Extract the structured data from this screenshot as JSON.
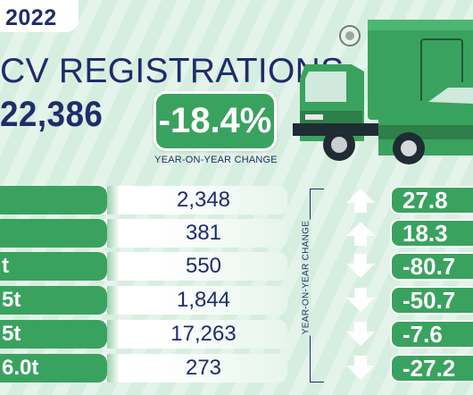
{
  "year": "2022",
  "title": "CV REGISTRATIONS",
  "total": "22,386",
  "change": {
    "value": "-18.4%",
    "label": "YEAR-ON-YEAR CHANGE"
  },
  "side_label": "YEAR-ON-YEAR CHANGE",
  "rows": [
    {
      "label": "",
      "value": "2,348",
      "change": "27.8",
      "direction": "up"
    },
    {
      "label": "",
      "value": "381",
      "change": "18.3",
      "direction": "up"
    },
    {
      "label": "t",
      "value": "550",
      "change": "-80.7",
      "direction": "down"
    },
    {
      "label": "5t",
      "value": "1,844",
      "change": "-50.7",
      "direction": "down"
    },
    {
      "label": "5t",
      "value": "17,263",
      "change": "-7.6",
      "direction": "down"
    },
    {
      "label": "6.0t",
      "value": "273",
      "change": "-27.2",
      "direction": "down"
    }
  ],
  "colors": {
    "accent_green": "#3aa25f",
    "navy": "#1f2c6b",
    "background": "#d6eedf"
  },
  "icons": {
    "truck": "box-truck-icon",
    "pickup": "pickup-truck-icon",
    "up": "up-arrow-icon",
    "down": "down-arrow-icon"
  }
}
